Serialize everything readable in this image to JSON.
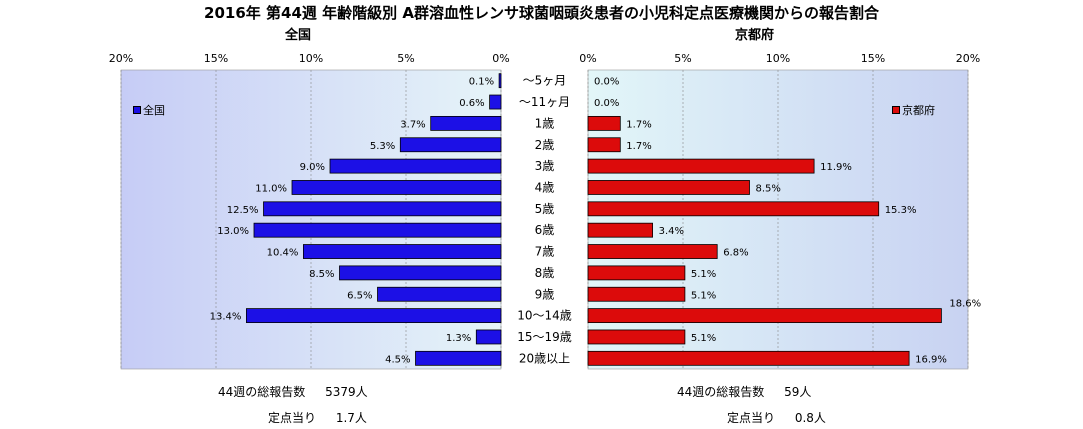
{
  "title": "2016年 第44週 年齢階級別 A群溶血性レンサ球菌咽頭炎患者の小児科定点医療機関からの報告割合",
  "colors": {
    "national": "#1c10e6",
    "kyoto": "#dc0b0b",
    "plot_bg": "#ccd4f4",
    "grid": "#888888"
  },
  "chart_data": [
    {
      "type": "bar",
      "title": "全国",
      "orientation": "horizontal-left",
      "categories": [
        "～5ヶ月",
        "～11ヶ月",
        "1歳",
        "2歳",
        "3歳",
        "4歳",
        "5歳",
        "6歳",
        "7歳",
        "8歳",
        "9歳",
        "10～14歳",
        "15～19歳",
        "20歳以上"
      ],
      "series": [
        {
          "name": "全国",
          "values": [
            0.1,
            0.6,
            3.7,
            5.3,
            9.0,
            11.0,
            12.5,
            13.0,
            10.4,
            8.5,
            6.5,
            13.4,
            1.3,
            4.5
          ]
        }
      ],
      "data_labels": [
        "0.1%",
        "0.6%",
        "3.7%",
        "5.3%",
        "9.0%",
        "11.0%",
        "12.5%",
        "13.0%",
        "10.4%",
        "8.5%",
        "6.5%",
        "13.4%",
        "1.3%",
        "4.5%"
      ],
      "xlim": [
        0,
        20
      ],
      "xticks": [
        "20%",
        "15%",
        "10%",
        "5%",
        "0%"
      ],
      "grid": true,
      "legend": "top-left"
    },
    {
      "type": "bar",
      "title": "京都府",
      "orientation": "horizontal-right",
      "categories": [
        "～5ヶ月",
        "～11ヶ月",
        "1歳",
        "2歳",
        "3歳",
        "4歳",
        "5歳",
        "6歳",
        "7歳",
        "8歳",
        "9歳",
        "10～14歳",
        "15～19歳",
        "20歳以上"
      ],
      "series": [
        {
          "name": "京都府",
          "values": [
            0.0,
            0.0,
            1.7,
            1.7,
            11.9,
            8.5,
            15.3,
            3.4,
            6.8,
            5.1,
            5.1,
            18.6,
            5.1,
            16.9
          ]
        }
      ],
      "data_labels": [
        "0.0%",
        "0.0%",
        "1.7%",
        "1.7%",
        "11.9%",
        "8.5%",
        "15.3%",
        "3.4%",
        "6.8%",
        "5.1%",
        "5.1%",
        "18.6%",
        "5.1%",
        "16.9%"
      ],
      "xlim": [
        0,
        20
      ],
      "xticks": [
        "0%",
        "5%",
        "10%",
        "15%",
        "20%"
      ],
      "grid": true,
      "legend": "top-right"
    }
  ],
  "stats": {
    "national": {
      "reports_label": "44週の総報告数",
      "reports_value": "5379人",
      "per_site_label": "定点当り",
      "per_site_value": "1.7人"
    },
    "kyoto": {
      "reports_label": "44週の総報告数",
      "reports_value": "59人",
      "per_site_label": "定点当り",
      "per_site_value": "0.8人"
    }
  }
}
